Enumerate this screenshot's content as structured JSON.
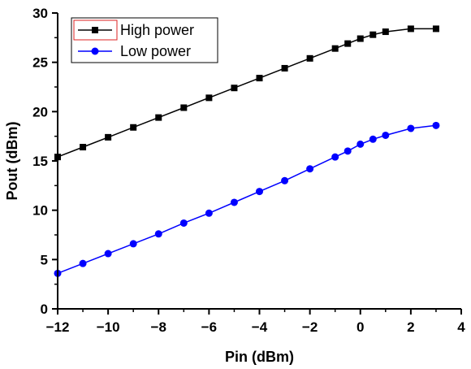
{
  "chart_data": {
    "type": "line",
    "xlabel": "Pin (dBm)",
    "ylabel": "Pout (dBm)",
    "xlim": [
      -12,
      4
    ],
    "ylim": [
      0,
      30
    ],
    "xticks": [
      -12,
      -10,
      -8,
      -6,
      -4,
      -2,
      0,
      2,
      4
    ],
    "yticks": [
      0,
      5,
      10,
      15,
      20,
      25,
      30
    ],
    "grid": false,
    "legend_position": "top-left",
    "series": [
      {
        "name": "High power",
        "color": "#000000",
        "marker": "square",
        "x": [
          -12,
          -11,
          -10,
          -9,
          -8,
          -7,
          -6,
          -5,
          -4,
          -3,
          -2,
          -1,
          -0.5,
          0,
          0.5,
          1,
          2,
          3
        ],
        "y": [
          15.4,
          16.4,
          17.4,
          18.4,
          19.4,
          20.4,
          21.4,
          22.4,
          23.4,
          24.4,
          25.4,
          26.4,
          26.9,
          27.4,
          27.8,
          28.1,
          28.4,
          28.4
        ]
      },
      {
        "name": "Low power",
        "color": "#0000ff",
        "marker": "circle",
        "x": [
          -12,
          -11,
          -10,
          -9,
          -8,
          -7,
          -6,
          -5,
          -4,
          -3,
          -2,
          -1,
          -0.5,
          0,
          0.5,
          1,
          2,
          3
        ],
        "y": [
          3.6,
          4.6,
          5.6,
          6.6,
          7.6,
          8.7,
          9.7,
          10.8,
          11.9,
          13.0,
          14.2,
          15.4,
          16.0,
          16.7,
          17.2,
          17.6,
          18.3,
          18.6
        ]
      }
    ]
  }
}
